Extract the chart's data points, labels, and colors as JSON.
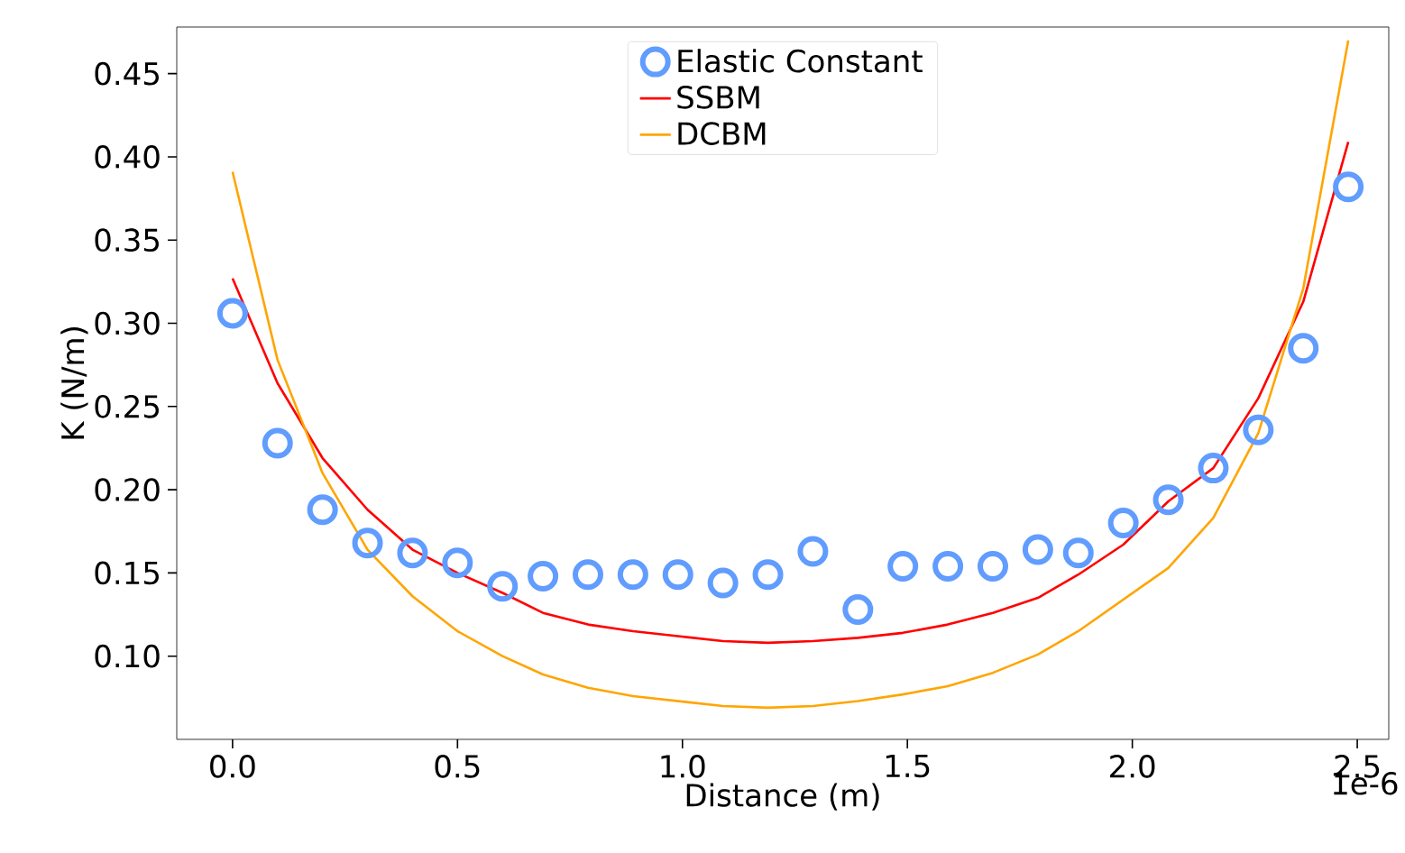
{
  "chart_data": {
    "type": "line",
    "xlabel": "Distance (m)",
    "ylabel": "K (N/m)",
    "x": [
      0,
      0.1,
      0.2,
      0.3,
      0.4,
      0.5,
      0.6,
      0.69,
      0.79,
      0.89,
      0.99,
      1.09,
      1.19,
      1.29,
      1.39,
      1.49,
      1.59,
      1.69,
      1.79,
      1.88,
      1.98,
      2.08,
      2.18,
      2.28,
      2.38,
      2.48
    ],
    "series": [
      {
        "name": "Elastic Constant",
        "type": "scatter",
        "marker": "circle",
        "color": "#619cff",
        "values": [
          0.306,
          0.228,
          0.188,
          0.168,
          0.162,
          0.156,
          0.142,
          0.148,
          0.149,
          0.149,
          0.149,
          0.144,
          0.149,
          0.163,
          0.128,
          0.154,
          0.154,
          0.154,
          0.164,
          0.162,
          0.18,
          0.194,
          0.213,
          0.236,
          0.285,
          0.382
        ]
      },
      {
        "name": "SSBM",
        "color": "#ff0000",
        "values": [
          0.327,
          0.264,
          0.219,
          0.188,
          0.164,
          0.15,
          0.138,
          0.126,
          0.119,
          0.115,
          0.112,
          0.109,
          0.108,
          0.109,
          0.111,
          0.114,
          0.119,
          0.126,
          0.135,
          0.149,
          0.167,
          0.193,
          0.213,
          0.255,
          0.313,
          0.409
        ]
      },
      {
        "name": "DCBM",
        "color": "#ffa500",
        "values": [
          0.391,
          0.278,
          0.21,
          0.164,
          0.136,
          0.115,
          0.1,
          0.089,
          0.081,
          0.076,
          0.073,
          0.07,
          0.069,
          0.07,
          0.073,
          0.077,
          0.082,
          0.09,
          0.101,
          0.115,
          0.134,
          0.153,
          0.183,
          0.234,
          0.321,
          0.47
        ]
      }
    ],
    "xlim": [
      -0.124,
      2.57
    ],
    "ylim": [
      0.05,
      0.478
    ],
    "xticks": [
      {
        "value": 0,
        "label": "0.0"
      },
      {
        "value": 0.5,
        "label": "0.5"
      },
      {
        "value": 1.0,
        "label": "1.0"
      },
      {
        "value": 1.5,
        "label": "1.5"
      },
      {
        "value": 2.0,
        "label": "2.0"
      },
      {
        "value": 2.5,
        "label": "2.5"
      }
    ],
    "yticks": [
      {
        "value": 0.1,
        "label": "0.10"
      },
      {
        "value": 0.15,
        "label": "0.15"
      },
      {
        "value": 0.2,
        "label": "0.20"
      },
      {
        "value": 0.25,
        "label": "0.25"
      },
      {
        "value": 0.3,
        "label": "0.30"
      },
      {
        "value": 0.35,
        "label": "0.35"
      },
      {
        "value": 0.4,
        "label": "0.40"
      },
      {
        "value": 0.45,
        "label": "0.45"
      }
    ],
    "annotations": [
      "1e-6"
    ],
    "legend": "top",
    "grid": false
  }
}
